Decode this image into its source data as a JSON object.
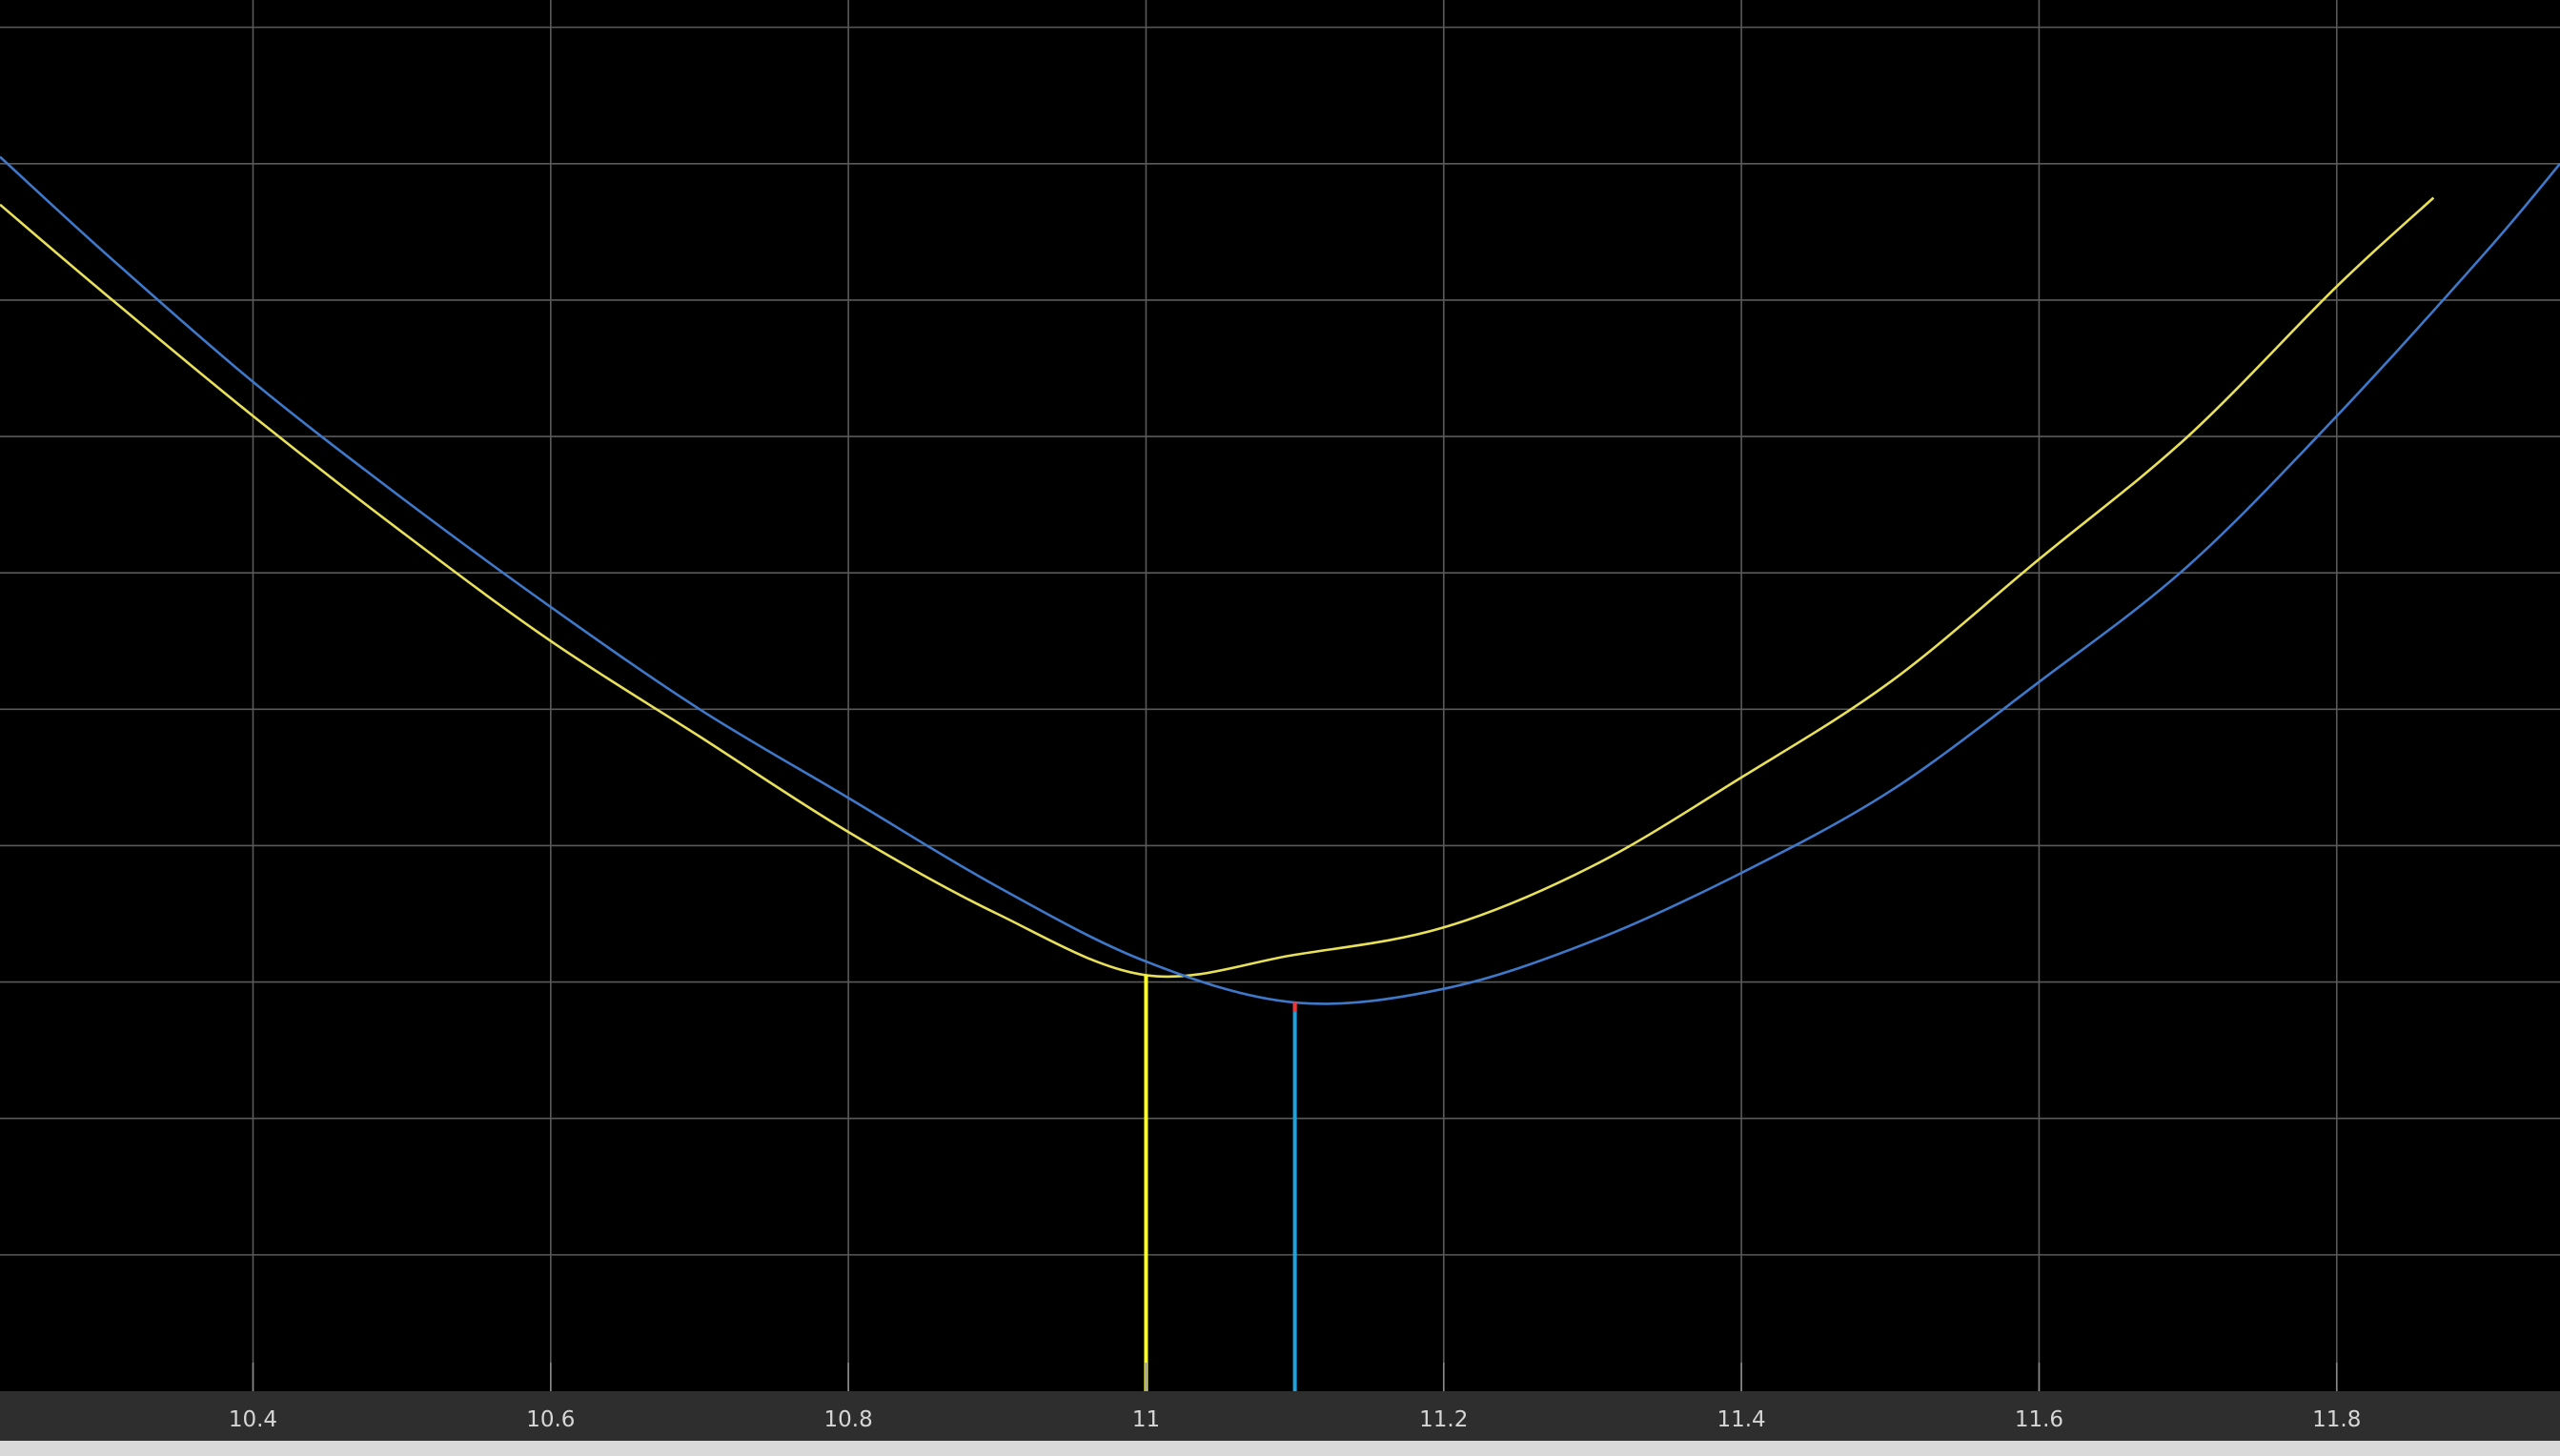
{
  "chart_data": {
    "type": "line",
    "title": "",
    "xlabel": "",
    "ylabel": "",
    "xlim": [
      10.23,
      11.95
    ],
    "ylim": [
      0,
      10.2
    ],
    "x_ticks": [
      {
        "value": 10.4,
        "label": "10.4"
      },
      {
        "value": 10.6,
        "label": "10.6"
      },
      {
        "value": 10.8,
        "label": "10.8"
      },
      {
        "value": 11.0,
        "label": "11"
      },
      {
        "value": 11.2,
        "label": "11.2"
      },
      {
        "value": 11.4,
        "label": "11.4"
      },
      {
        "value": 11.6,
        "label": "11.6"
      },
      {
        "value": 11.8,
        "label": "11.8"
      }
    ],
    "y_grid": [
      1,
      2,
      3,
      4,
      5,
      6,
      7,
      8,
      9,
      10
    ],
    "grid": true,
    "legend": "none",
    "series": [
      {
        "color": "#e8e05a",
        "vertex_x": 11.0,
        "vertex_y": 3.05,
        "points": [
          [
            10.23,
            8.7
          ],
          [
            10.3,
            8.05
          ],
          [
            10.4,
            7.15
          ],
          [
            10.5,
            6.3
          ],
          [
            10.6,
            5.5
          ],
          [
            10.7,
            4.8
          ],
          [
            10.8,
            4.1
          ],
          [
            10.9,
            3.5
          ],
          [
            11.0,
            3.05
          ],
          [
            11.1,
            3.2
          ],
          [
            11.2,
            3.4
          ],
          [
            11.3,
            3.85
          ],
          [
            11.4,
            4.5
          ],
          [
            11.5,
            5.2
          ],
          [
            11.6,
            6.1
          ],
          [
            11.7,
            7.0
          ],
          [
            11.8,
            8.1
          ],
          [
            11.865,
            8.75
          ]
        ]
      },
      {
        "color": "#3f78c8",
        "vertex_x": 11.1,
        "vertex_y": 2.85,
        "points": [
          [
            10.23,
            9.05
          ],
          [
            10.3,
            8.35
          ],
          [
            10.4,
            7.4
          ],
          [
            10.5,
            6.55
          ],
          [
            10.6,
            5.75
          ],
          [
            10.7,
            5.0
          ],
          [
            10.8,
            4.35
          ],
          [
            10.9,
            3.7
          ],
          [
            11.0,
            3.15
          ],
          [
            11.1,
            2.85
          ],
          [
            11.2,
            2.95
          ],
          [
            11.3,
            3.3
          ],
          [
            11.4,
            3.8
          ],
          [
            11.5,
            4.4
          ],
          [
            11.6,
            5.2
          ],
          [
            11.7,
            6.05
          ],
          [
            11.8,
            7.15
          ],
          [
            11.9,
            8.35
          ],
          [
            11.95,
            9.0
          ]
        ]
      }
    ],
    "markers": [
      {
        "x": 11.0,
        "y_top": 3.05,
        "color": "#ffff1a"
      },
      {
        "x": 11.1,
        "y_top": 2.85,
        "color": "#1aa5e0",
        "tip_color": "#ff3030"
      }
    ],
    "colors": {
      "background": "#000000",
      "grid": "#5a5a5a",
      "axis_bar": "#2e2e2e",
      "tick_label": "#d6d6d6"
    }
  }
}
